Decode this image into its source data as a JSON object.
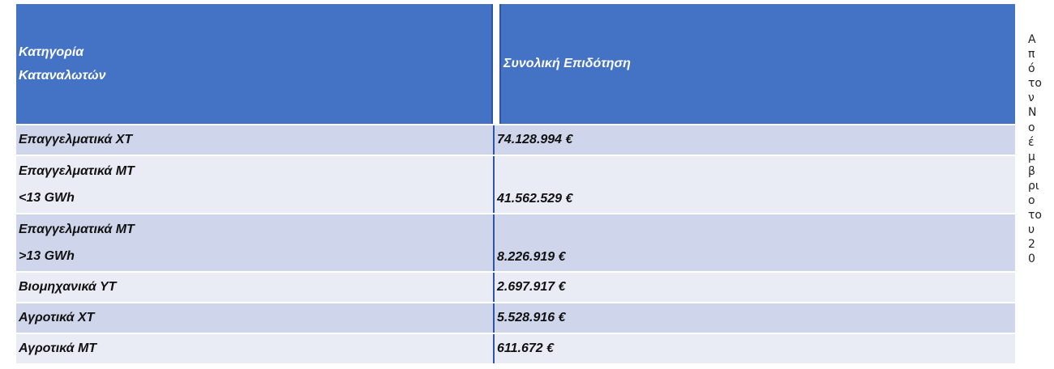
{
  "table": {
    "header": {
      "col1_line1": "Κατηγορία",
      "col1_line2": "Καταναλωτών",
      "col2": "Συνολική Επιδότηση"
    },
    "rows": [
      {
        "category_line1": "Επαγγελματικά ΧΤ",
        "category_line2": "",
        "amount": "74.128.994 €"
      },
      {
        "category_line1": "Επαγγελματικά ΜΤ",
        "category_line2": "<13 GWh",
        "amount": "41.562.529 €"
      },
      {
        "category_line1": "Επαγγελματικά ΜΤ",
        "category_line2": ">13 GWh",
        "amount": "8.226.919 €"
      },
      {
        "category_line1": "Βιομηχανικά ΥΤ",
        "category_line2": "",
        "amount": "2.697.917 €"
      },
      {
        "category_line1": "Αγροτικά ΧΤ",
        "category_line2": "",
        "amount": "5.528.916 €"
      },
      {
        "category_line1": "Αγροτικά ΜΤ",
        "category_line2": "",
        "amount": "611.672 €"
      }
    ]
  },
  "side_text": "Α\nπ\nό\nτο\nν\nΝ\nο\nέ\nμ\nβ\nρι\nο\nτο\nυ\n2\n0",
  "colors": {
    "header_bg": "#4472c4",
    "row_dark": "#cfd5ea",
    "row_light": "#e9ebf5",
    "separator": "#2f55a4"
  }
}
